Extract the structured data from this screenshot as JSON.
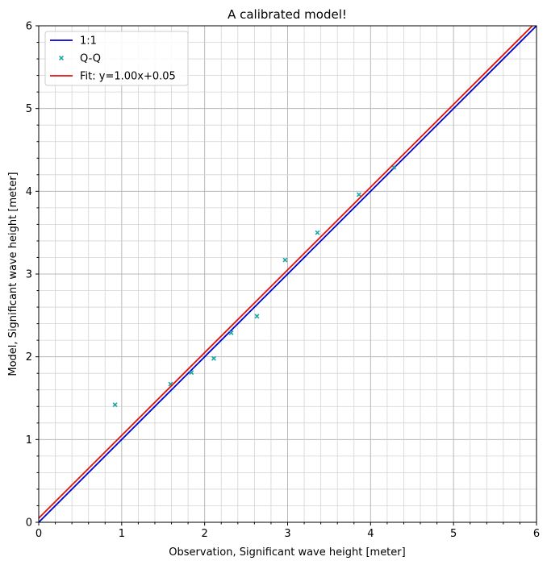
{
  "chart_data": {
    "type": "scatter",
    "title": "A calibrated model!",
    "xlabel": "Observation, Significant wave height [meter]",
    "ylabel": "Model, Significant wave height [meter]",
    "xlim": [
      0,
      6
    ],
    "ylim": [
      0,
      6
    ],
    "x_ticks": [
      "0",
      "1",
      "2",
      "3",
      "4",
      "5",
      "6"
    ],
    "y_ticks": [
      "0",
      "1",
      "2",
      "3",
      "4",
      "5",
      "6"
    ],
    "grid": "major and minor",
    "legend_position": "top-left",
    "colors": {
      "one_to_one": "#0000cc",
      "qq": "#17a5a5",
      "fit": "#e01010"
    },
    "series": [
      {
        "name": "1:1",
        "kind": "line",
        "x": [
          0,
          6
        ],
        "y": [
          0,
          6
        ]
      },
      {
        "name": "Q-Q",
        "kind": "markers",
        "x": [
          0.92,
          1.59,
          1.84,
          2.11,
          2.32,
          2.63,
          2.97,
          3.36,
          3.86,
          4.28
        ],
        "y": [
          1.42,
          1.67,
          1.81,
          1.98,
          2.29,
          2.49,
          3.17,
          3.5,
          3.96,
          4.29
        ]
      },
      {
        "name": "Fit: y=1.00x+0.05",
        "kind": "line",
        "x": [
          0,
          6
        ],
        "y": [
          0.05,
          6.05
        ]
      }
    ]
  }
}
